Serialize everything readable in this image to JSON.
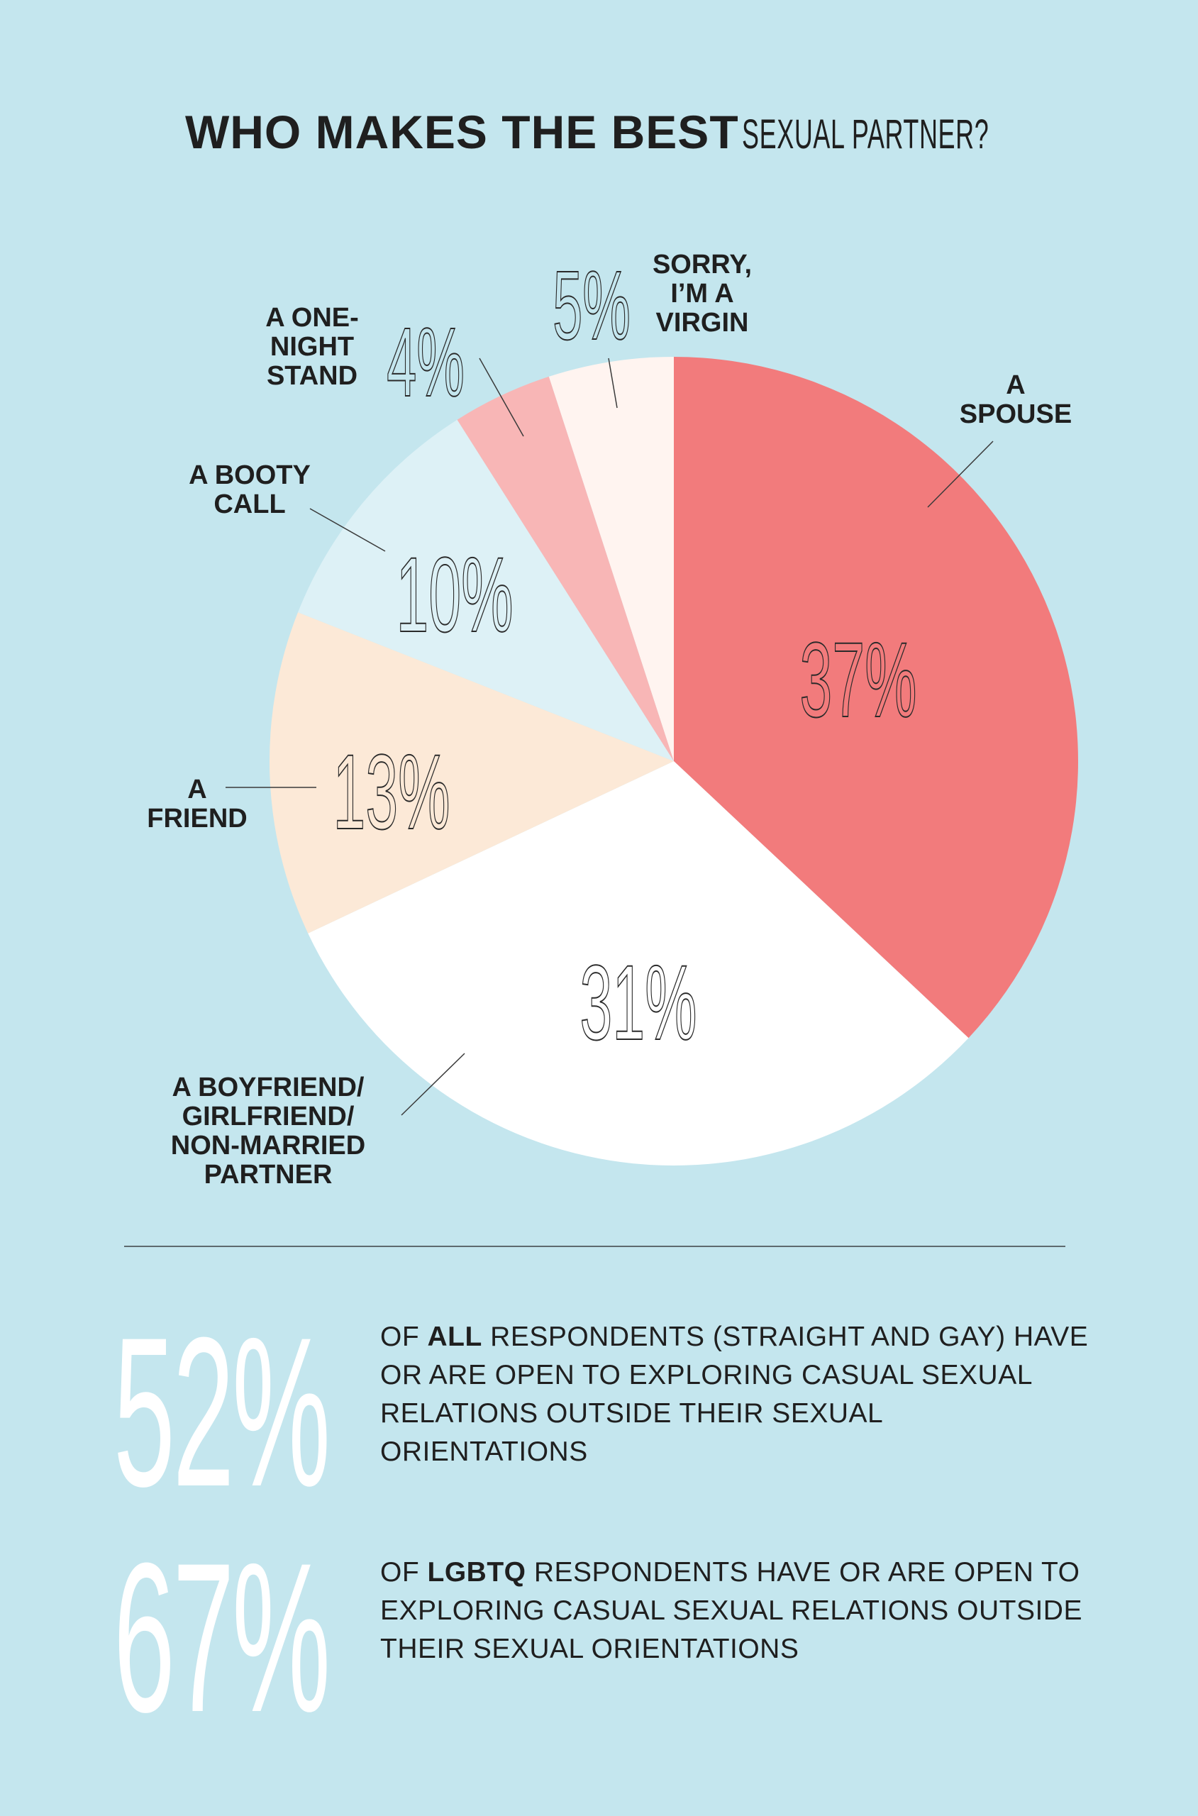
{
  "title": {
    "bold": "WHO MAKES THE BEST",
    "light": "SEXUAL PARTNER?"
  },
  "chart_data": {
    "type": "pie",
    "title": "WHO MAKES THE BEST SEXUAL PARTNER?",
    "slices": [
      {
        "label": "A SPOUSE",
        "label_lines": [
          "A",
          "SPOUSE"
        ],
        "value": 37,
        "display": "37%",
        "color": "#f27b7c"
      },
      {
        "label": "A BOYFRIEND/ GIRLFRIEND/ NON-MARRIED PARTNER",
        "label_lines": [
          "A BOYFRIEND/",
          "GIRLFRIEND/",
          "NON-MARRIED",
          "PARTNER"
        ],
        "value": 31,
        "display": "31%",
        "color": "#ffffff"
      },
      {
        "label": "A FRIEND",
        "label_lines": [
          "A",
          "FRIEND"
        ],
        "value": 13,
        "display": "13%",
        "color": "#fce9d7"
      },
      {
        "label": "A BOOTY CALL",
        "label_lines": [
          "A BOOTY",
          "CALL"
        ],
        "value": 10,
        "display": "10%",
        "color": "#ddf1f6"
      },
      {
        "label": "A ONE-NIGHT STAND",
        "label_lines": [
          "A ONE-",
          "NIGHT",
          "STAND"
        ],
        "value": 4,
        "display": "4%",
        "color": "#f8b6b6"
      },
      {
        "label": "SORRY, I’M A VIRGIN",
        "label_lines": [
          "SORRY,",
          "I’M A",
          "VIRGIN"
        ],
        "value": 5,
        "display": "5%",
        "color": "#fff4f0"
      }
    ]
  },
  "stats": [
    {
      "number": "52%",
      "pre": "OF ",
      "bold": "ALL",
      "post": " RESPONDENTS (STRAIGHT AND GAY) HAVE OR ARE OPEN TO EXPLORING CASUAL SEXUAL RELATIONS OUTSIDE THEIR SEXUAL ORIENTATIONS"
    },
    {
      "number": "67%",
      "pre": "OF ",
      "bold": "LGBTQ",
      "post": " RESPONDENTS HAVE OR ARE OPEN TO EXPLORING CASUAL SEXUAL RELATIONS OUTSIDE THEIR SEXUAL ORIENTATIONS"
    }
  ]
}
